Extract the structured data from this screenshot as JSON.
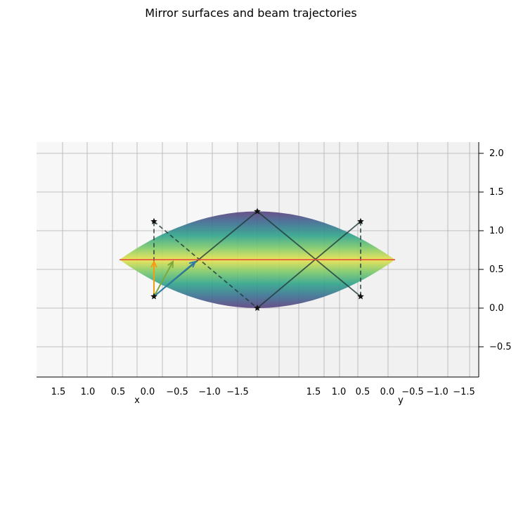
{
  "chart_data": {
    "type": "3d-surface",
    "title": "Mirror surfaces and beam trajectories",
    "xlabel": "x",
    "ylabel": "y",
    "zlabel": "",
    "x_ticks": [
      "1.5",
      "1.0",
      "0.5",
      "0.0",
      "−0.5",
      "−1.0",
      "−1.5"
    ],
    "y_ticks": [
      "1.5",
      "1.0",
      "0.5",
      "0.0",
      "−0.5",
      "−1.0",
      "−1.5"
    ],
    "z_ticks": [
      "2.0",
      "1.5",
      "1.0",
      "0.5",
      "0.0",
      "−0.5"
    ],
    "z_values": [
      2.0,
      1.5,
      1.0,
      0.5,
      0.0,
      -0.5
    ],
    "zlim": [
      -0.9,
      2.15
    ],
    "grid": true,
    "colormap": "viridis",
    "mirrors": [
      {
        "vertex_z": 1.25,
        "curvature": "concave-down"
      },
      {
        "vertex_z": 0.0,
        "curvature": "concave-up"
      }
    ],
    "beam": {
      "center_z": 0.625,
      "segments": [
        {
          "from": [
            -1.2,
            0.15
          ],
          "to": [
            -1.2,
            1.12
          ],
          "style": "dashed"
        },
        {
          "from": [
            -1.2,
            1.12
          ],
          "to": [
            0.0,
            0.0
          ],
          "style": "dashed"
        },
        {
          "from": [
            -1.2,
            0.15
          ],
          "to": [
            0.0,
            1.25
          ],
          "style": "solid"
        },
        {
          "from": [
            0.0,
            1.25
          ],
          "to": [
            1.2,
            0.15
          ],
          "style": "solid"
        },
        {
          "from": [
            0.0,
            0.0
          ],
          "to": [
            1.2,
            1.12
          ],
          "style": "solid"
        },
        {
          "from": [
            1.2,
            1.12
          ],
          "to": [
            1.2,
            0.15
          ],
          "style": "dashed"
        }
      ],
      "points": [
        [
          -1.2,
          1.12
        ],
        [
          0.0,
          1.25
        ],
        [
          1.2,
          1.12
        ],
        [
          -1.2,
          0.15
        ],
        [
          0.0,
          0.0
        ],
        [
          1.2,
          0.15
        ]
      ]
    },
    "arrows": [
      {
        "color": "#f39c12",
        "from": [
          -1.2,
          0.15
        ],
        "to": [
          -1.2,
          0.6
        ]
      },
      {
        "color": "#7fa83b",
        "from": [
          -1.2,
          0.15
        ],
        "to": [
          -0.98,
          0.6
        ]
      },
      {
        "color": "#2f7ea8",
        "from": [
          -1.2,
          0.15
        ],
        "to": [
          -0.72,
          0.6
        ]
      }
    ]
  }
}
